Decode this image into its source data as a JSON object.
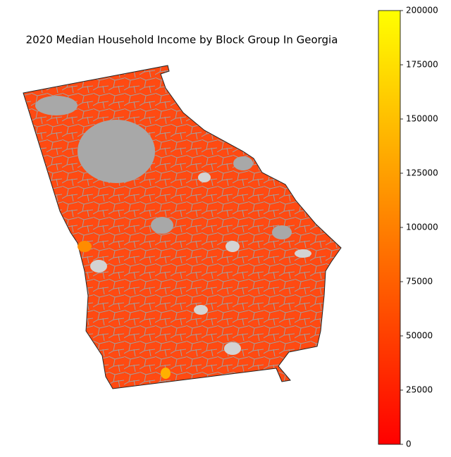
{
  "chart_data": {
    "type": "choropleth",
    "title": "2020 Median Household Income by Block Group In Georgia",
    "colormap": [
      "#ff0000",
      "#ffff00"
    ],
    "missing_color": "#d3d3d3",
    "edge_color": "#a0a0a0",
    "ylim": [
      0,
      200000
    ],
    "yticks": [
      0,
      25000,
      50000,
      75000,
      100000,
      125000,
      150000,
      175000,
      200000
    ]
  }
}
